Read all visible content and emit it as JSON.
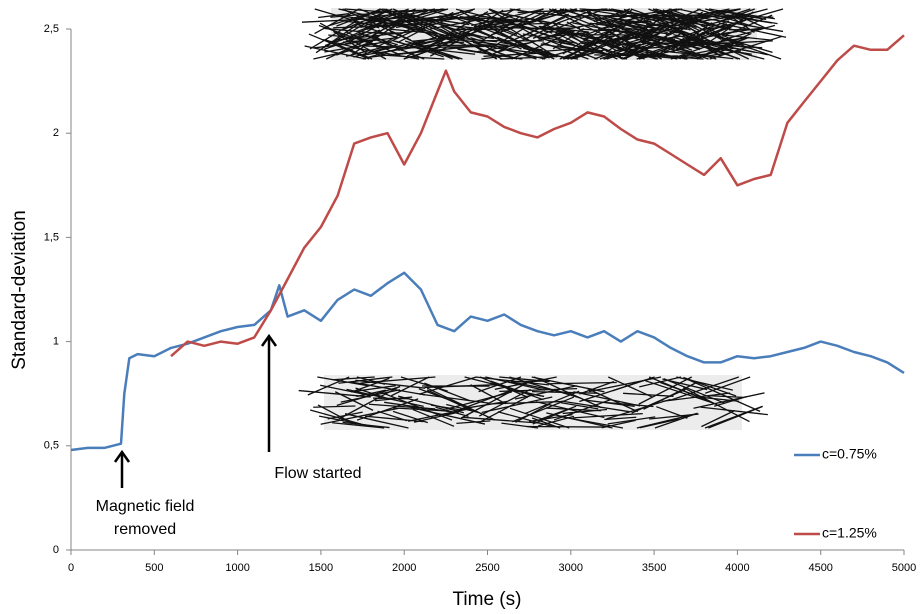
{
  "chart_data": {
    "type": "line",
    "x_label": "Time (s)",
    "y_label": "Standard-deviation",
    "xlim": [
      0,
      5000
    ],
    "xticks": [
      0,
      500,
      1000,
      1500,
      2000,
      2500,
      3000,
      3500,
      4000,
      4500,
      5000
    ],
    "ylim": [
      0,
      2.5
    ],
    "yticks": [
      0,
      {
        "value": 0.5,
        "label": "0,5"
      },
      1,
      {
        "value": 1.5,
        "label": "1,5"
      },
      2,
      {
        "value": 2.5,
        "label": "2,5"
      }
    ],
    "grid": false,
    "legend_position": "right",
    "annotations": [
      {
        "lines": [
          "Magnetic field",
          "removed"
        ]
      },
      {
        "lines": [
          "Flow started"
        ]
      }
    ],
    "series": [
      {
        "name": "c=0.75%",
        "color": "#4a7ebb",
        "x": [
          0,
          100,
          200,
          300,
          320,
          350,
          400,
          500,
          600,
          700,
          800,
          900,
          1000,
          1100,
          1200,
          1250,
          1300,
          1400,
          1500,
          1600,
          1700,
          1800,
          1900,
          2000,
          2100,
          2200,
          2300,
          2400,
          2500,
          2600,
          2700,
          2800,
          2900,
          3000,
          3100,
          3200,
          3300,
          3400,
          3500,
          3600,
          3700,
          3800,
          3900,
          4000,
          4100,
          4200,
          4300,
          4400,
          4500,
          4600,
          4700,
          4800,
          4900,
          5000
        ],
        "values": [
          0.48,
          0.49,
          0.49,
          0.51,
          0.75,
          0.92,
          0.94,
          0.93,
          0.97,
          0.99,
          1.02,
          1.05,
          1.07,
          1.08,
          1.15,
          1.27,
          1.12,
          1.15,
          1.1,
          1.2,
          1.25,
          1.22,
          1.28,
          1.33,
          1.25,
          1.08,
          1.05,
          1.12,
          1.1,
          1.13,
          1.08,
          1.05,
          1.03,
          1.05,
          1.02,
          1.05,
          1.0,
          1.05,
          1.02,
          0.97,
          0.93,
          0.9,
          0.9,
          0.93,
          0.92,
          0.93,
          0.95,
          0.97,
          1.0,
          0.98,
          0.95,
          0.93,
          0.9,
          0.85
        ]
      },
      {
        "name": "c=1.25%",
        "color": "#be4b48",
        "x": [
          600,
          700,
          800,
          900,
          1000,
          1100,
          1200,
          1300,
          1400,
          1500,
          1600,
          1700,
          1800,
          1900,
          2000,
          2100,
          2200,
          2250,
          2300,
          2400,
          2500,
          2600,
          2700,
          2800,
          2900,
          3000,
          3100,
          3200,
          3300,
          3400,
          3500,
          3600,
          3700,
          3800,
          3900,
          4000,
          4100,
          4200,
          4300,
          4400,
          4500,
          4600,
          4700,
          4800,
          4900,
          5000
        ],
        "values": [
          0.93,
          1.0,
          0.98,
          1.0,
          0.99,
          1.02,
          1.15,
          1.3,
          1.45,
          1.55,
          1.7,
          1.95,
          1.98,
          2.0,
          1.85,
          2.0,
          2.2,
          2.3,
          2.2,
          2.1,
          2.08,
          2.03,
          2.0,
          1.98,
          2.02,
          2.05,
          2.1,
          2.08,
          2.02,
          1.97,
          1.95,
          1.9,
          1.85,
          1.8,
          1.88,
          1.75,
          1.78,
          1.8,
          2.05,
          2.15,
          2.25,
          2.35,
          2.42,
          2.4,
          2.4,
          2.47
        ]
      }
    ]
  }
}
